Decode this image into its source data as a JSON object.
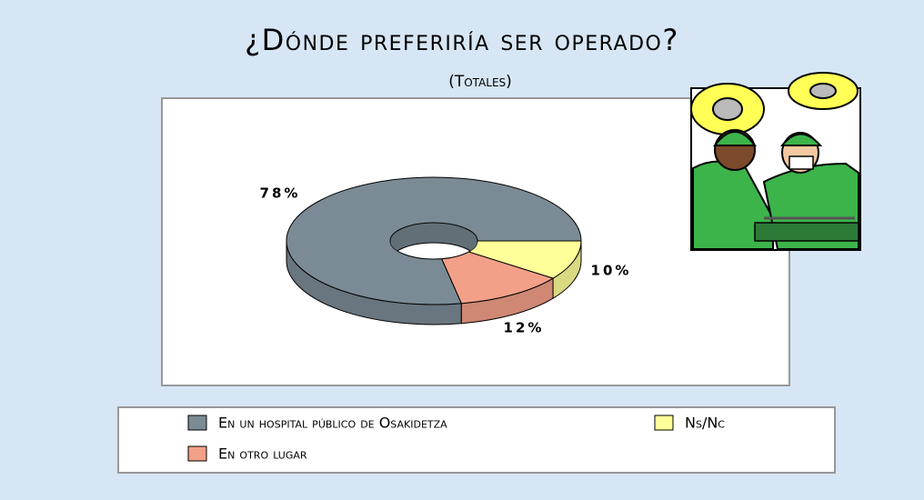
{
  "chart_data": {
    "type": "pie",
    "title": "¿Dónde preferiría ser operado?",
    "subtitle": "(Totales)",
    "categories": [
      "En un hospital público de Osakidetza",
      "Ns/Nc",
      "En otro lugar"
    ],
    "values": [
      78,
      10,
      12
    ],
    "value_labels": [
      "78%",
      "10%",
      "12%"
    ],
    "colors": [
      "#7b8b95",
      "#ffff99",
      "#f2a088"
    ],
    "donut": true
  }
}
